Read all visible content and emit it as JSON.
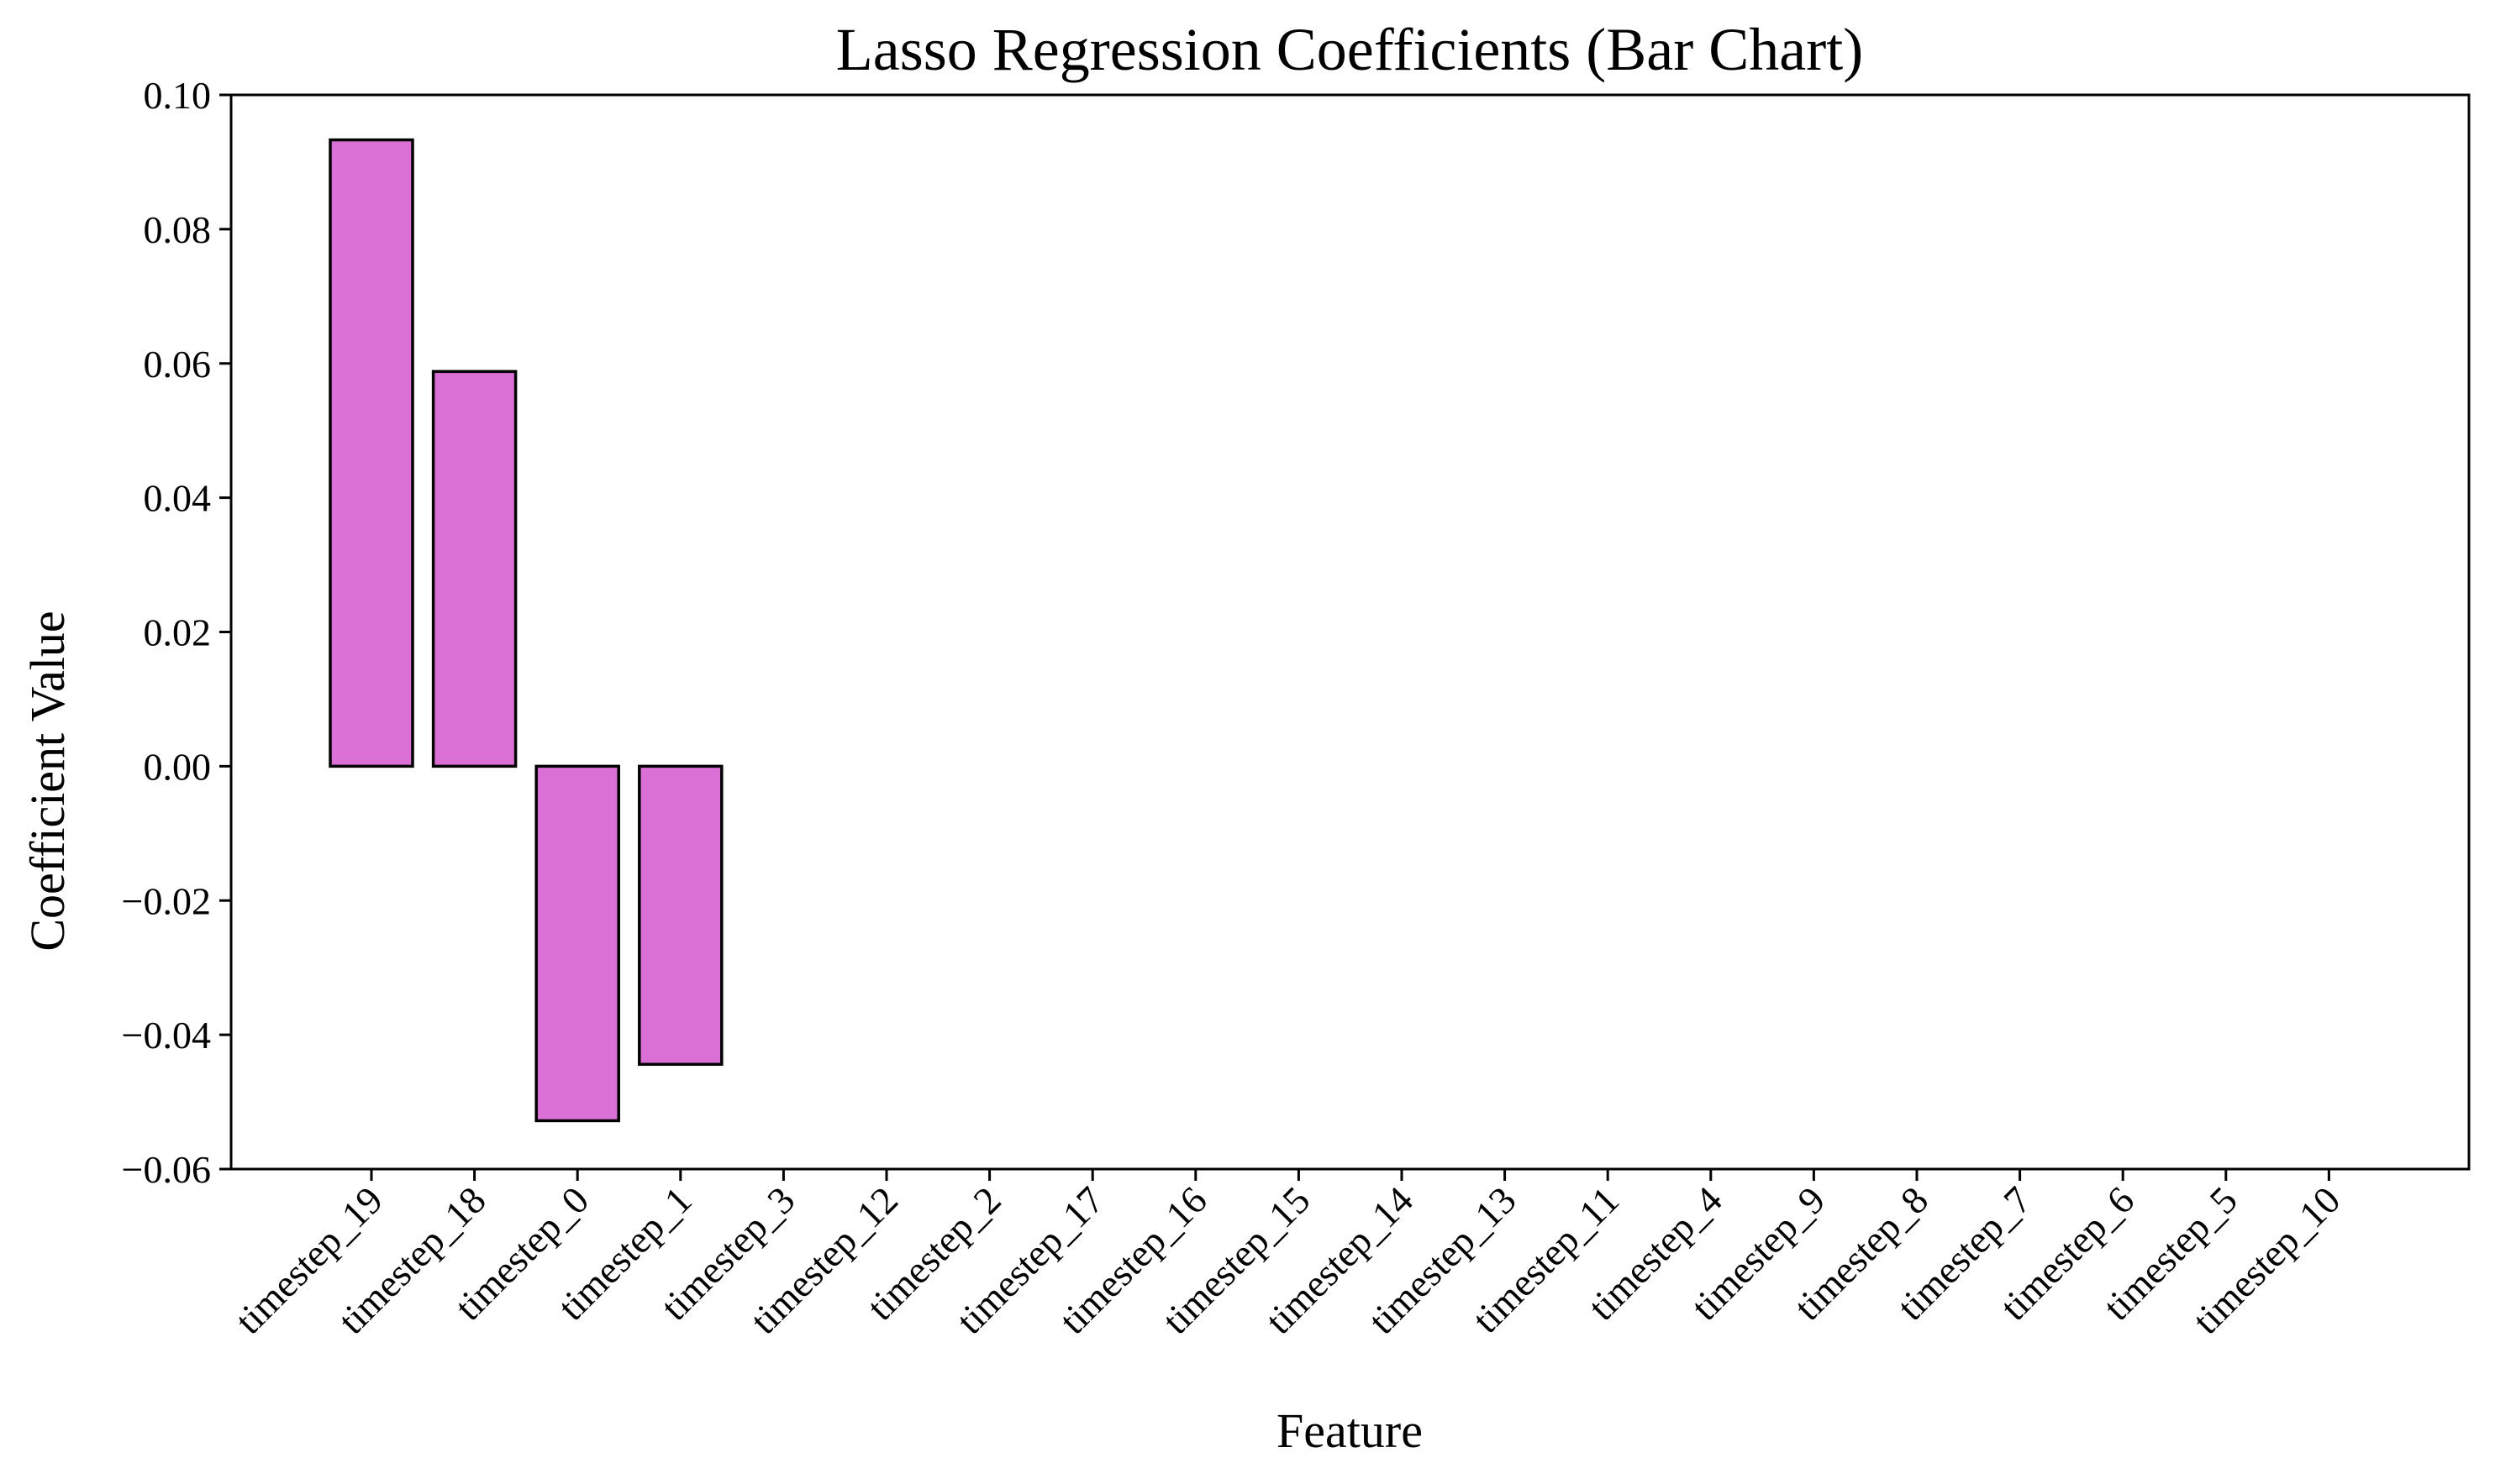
{
  "chart_data": {
    "type": "bar",
    "title": "Lasso Regression Coefficients (Bar Chart)",
    "xlabel": "Feature",
    "ylabel": "Coefficient Value",
    "categories": [
      "timestep_19",
      "timestep_18",
      "timestep_0",
      "timestep_1",
      "timestep_3",
      "timestep_12",
      "timestep_2",
      "timestep_17",
      "timestep_16",
      "timestep_15",
      "timestep_14",
      "timestep_13",
      "timestep_11",
      "timestep_4",
      "timestep_9",
      "timestep_8",
      "timestep_7",
      "timestep_6",
      "timestep_5",
      "timestep_10"
    ],
    "values": [
      0.0933,
      0.0588,
      -0.0528,
      -0.0444,
      0,
      0,
      0,
      0,
      0,
      0,
      0,
      0,
      0,
      0,
      0,
      0,
      0,
      0,
      0,
      0
    ],
    "ylim": [
      -0.06,
      0.1
    ],
    "yticks": [
      -0.06,
      -0.04,
      -0.02,
      0.0,
      0.02,
      0.04,
      0.06,
      0.08,
      0.1
    ],
    "ytick_labels": [
      "−0.06",
      "−0.04",
      "−0.02",
      "0.00",
      "0.02",
      "0.04",
      "0.06",
      "0.08",
      "0.10"
    ],
    "bar_color": "#da70d6",
    "edge_color": "#000000",
    "grid": false,
    "legend": "none"
  }
}
